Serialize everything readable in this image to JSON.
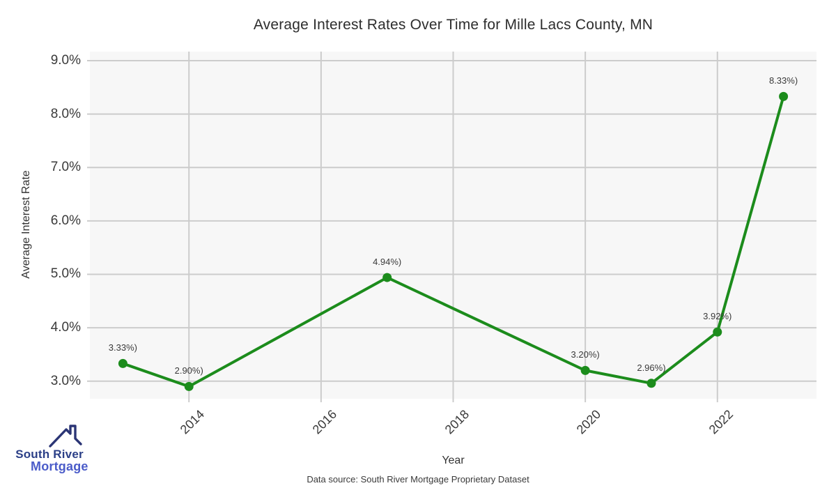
{
  "chart_data": {
    "type": "line",
    "title": "Average Interest Rates Over Time for Mille Lacs County, MN",
    "xlabel": "Year",
    "ylabel": "Average Interest Rate",
    "x": [
      2013,
      2014,
      2017,
      2020,
      2021,
      2022,
      2023
    ],
    "values": [
      3.33,
      2.9,
      4.94,
      3.2,
      2.96,
      3.92,
      8.33
    ],
    "point_labels": [
      "3.33%)",
      "2.90%)",
      "4.94%)",
      "3.20%)",
      "2.96%)",
      "3.92%)",
      "8.33%)"
    ],
    "xticks": [
      2014,
      2016,
      2018,
      2020,
      2022
    ],
    "xtick_labels": [
      "2014",
      "2016",
      "2018",
      "2020",
      "2022"
    ],
    "yticks": [
      3,
      4,
      5,
      6,
      7,
      8,
      9
    ],
    "ytick_labels": [
      "3.0%",
      "4.0%",
      "5.0%",
      "6.0%",
      "7.0%",
      "8.0%",
      "9.0%"
    ],
    "xlim": [
      2012.5,
      2023.5
    ],
    "ylim": [
      2.67,
      9.17
    ],
    "grid": true,
    "legend": false,
    "line_color": "#1c8c1c",
    "marker_color": "#1c8c1c",
    "plot_bg": "#f7f7f7",
    "grid_color": "#cccccc"
  },
  "footer": {
    "source": "Data source: South River Mortgage Proprietary Dataset"
  },
  "logo": {
    "line1": "South River",
    "line2": "Mortgage",
    "line1_color": "#2b3f87",
    "line2_color": "#4b5cc9",
    "roof_color": "#2b3575",
    "icon": "house-roof-icon"
  }
}
